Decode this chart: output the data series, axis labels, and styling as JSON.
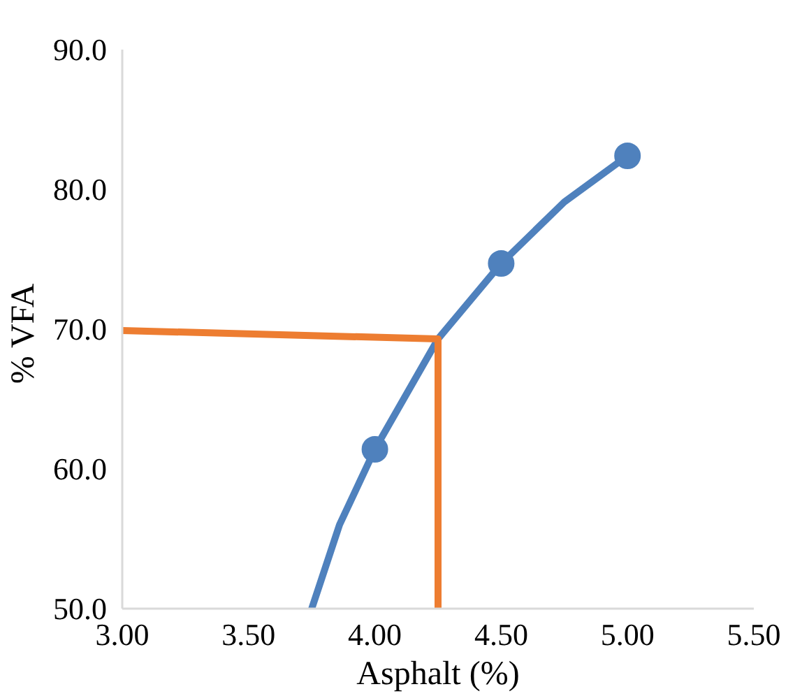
{
  "chart_data": {
    "type": "line",
    "xlabel": "Asphalt (%)",
    "ylabel": "%  VFA",
    "xlim": [
      3.0,
      5.5
    ],
    "ylim": [
      50,
      90
    ],
    "xticks": [
      {
        "value": 3.0,
        "label": "3.00"
      },
      {
        "value": 3.5,
        "label": "3.50"
      },
      {
        "value": 4.0,
        "label": "4.00"
      },
      {
        "value": 4.5,
        "label": "4.50"
      },
      {
        "value": 5.0,
        "label": "5.00"
      },
      {
        "value": 5.5,
        "label": "5.50"
      }
    ],
    "yticks": [
      {
        "value": 50,
        "label": "50.0"
      },
      {
        "value": 60,
        "label": "60.0"
      },
      {
        "value": 70,
        "label": "70.0"
      },
      {
        "value": 80,
        "label": "80.0"
      },
      {
        "value": 90,
        "label": "90.0"
      }
    ],
    "grid": false,
    "series": [
      {
        "color": "#4f81bd",
        "x": [
          3.75,
          3.86,
          4.0,
          4.25,
          4.5,
          4.75,
          5.0
        ],
        "values": [
          50,
          56,
          61.4,
          69.3,
          74.7,
          79.1,
          82.4
        ],
        "marker": "none"
      },
      {
        "type": "scatter",
        "color": "#4f81bd",
        "x": [
          4.0,
          4.5,
          5.0
        ],
        "values": [
          61.4,
          74.7,
          82.4
        ],
        "marker": "circle"
      },
      {
        "color": "#ed7d31",
        "x": [
          3.0,
          4.25,
          4.25
        ],
        "values": [
          69.9,
          69.3,
          50
        ],
        "marker": "none"
      }
    ]
  }
}
